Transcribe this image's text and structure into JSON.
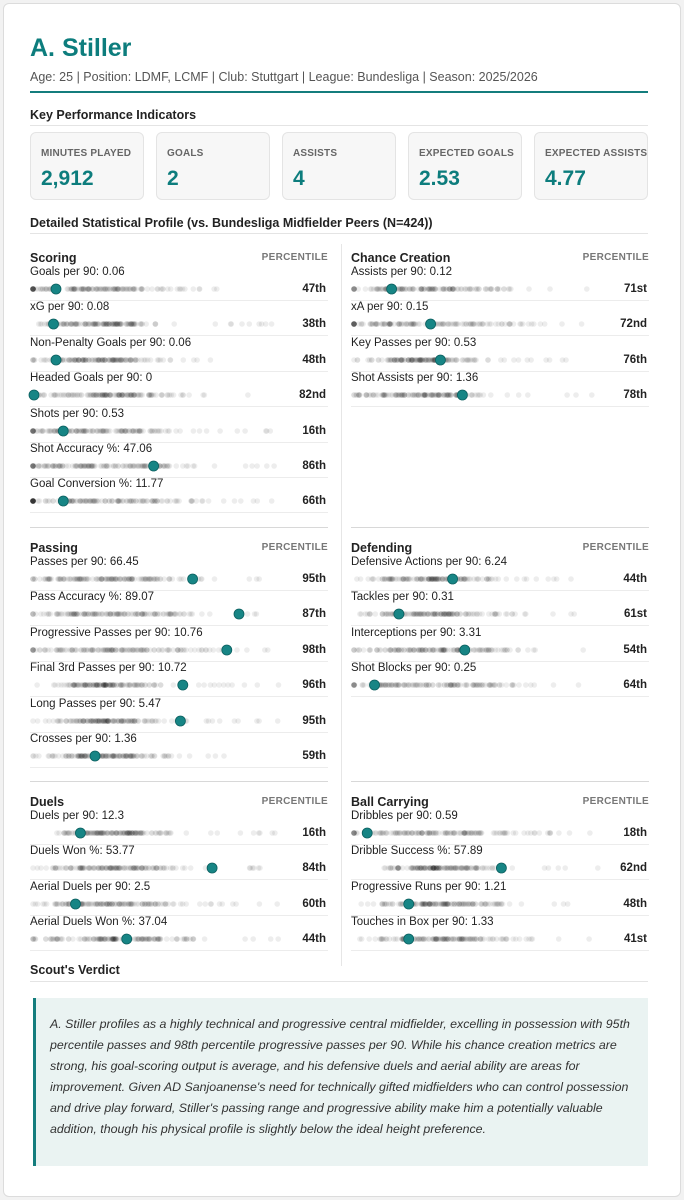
{
  "player": {
    "name": "A. Stiller",
    "meta": "Age: 25 | Position: LDMF, LCMF | Club: Stuttgart | League: Bundesliga | Season: 2025/2026"
  },
  "sections": {
    "kpi_title": "Key Performance Indicators",
    "profile_title": "Detailed Statistical Profile (vs. Bundesliga Midfielder Peers (N=424))",
    "verdict_title": "Scout's Verdict"
  },
  "kpis": [
    {
      "label": "MINUTES PLAYED",
      "value": "2,912"
    },
    {
      "label": "GOALS",
      "value": "2"
    },
    {
      "label": "ASSISTS",
      "value": "4"
    },
    {
      "label": "EXPECTED GOALS",
      "value": "2.53"
    },
    {
      "label": "EXPECTED ASSISTS",
      "value": "4.77"
    }
  ],
  "percentile_header": "PERCENTILE",
  "panels": [
    {
      "title": "Scoring",
      "metrics": [
        {
          "label": "Goals per 90: 0.06",
          "pct": "47th",
          "marker": 0.09
        },
        {
          "label": "xG per 90: 0.08",
          "pct": "38th",
          "marker": 0.08
        },
        {
          "label": "Non-Penalty Goals per 90: 0.06",
          "pct": "48th",
          "marker": 0.09
        },
        {
          "label": "Headed Goals per 90: 0",
          "pct": "82nd",
          "marker": 0.0
        },
        {
          "label": "Shots per 90: 0.53",
          "pct": "16th",
          "marker": 0.12
        },
        {
          "label": "Shot Accuracy %: 47.06",
          "pct": "86th",
          "marker": 0.49
        },
        {
          "label": "Goal Conversion %: 11.77",
          "pct": "66th",
          "marker": 0.12
        }
      ]
    },
    {
      "title": "Chance Creation",
      "metrics": [
        {
          "label": "Assists per 90: 0.12",
          "pct": "71st",
          "marker": 0.15
        },
        {
          "label": "xA per 90: 0.15",
          "pct": "72nd",
          "marker": 0.31
        },
        {
          "label": "Key Passes per 90: 0.53",
          "pct": "76th",
          "marker": 0.35
        },
        {
          "label": "Shot Assists per 90: 1.36",
          "pct": "78th",
          "marker": 0.44
        }
      ]
    },
    {
      "title": "Passing",
      "metrics": [
        {
          "label": "Passes per 90: 66.45",
          "pct": "95th",
          "marker": 0.65
        },
        {
          "label": "Pass Accuracy %: 89.07",
          "pct": "87th",
          "marker": 0.84
        },
        {
          "label": "Progressive Passes per 90: 10.76",
          "pct": "98th",
          "marker": 0.79
        },
        {
          "label": "Final 3rd Passes per 90: 10.72",
          "pct": "96th",
          "marker": 0.61
        },
        {
          "label": "Long Passes per 90: 5.47",
          "pct": "95th",
          "marker": 0.6
        },
        {
          "label": "Crosses per 90: 1.36",
          "pct": "59th",
          "marker": 0.25
        }
      ]
    },
    {
      "title": "Defending",
      "metrics": [
        {
          "label": "Defensive Actions per 90: 6.24",
          "pct": "44th",
          "marker": 0.4
        },
        {
          "label": "Tackles per 90: 0.31",
          "pct": "61st",
          "marker": 0.18
        },
        {
          "label": "Interceptions per 90: 3.31",
          "pct": "54th",
          "marker": 0.45
        },
        {
          "label": "Shot Blocks per 90: 0.25",
          "pct": "64th",
          "marker": 0.08
        }
      ]
    },
    {
      "title": "Duels",
      "metrics": [
        {
          "label": "Duels per 90: 12.3",
          "pct": "16th",
          "marker": 0.19
        },
        {
          "label": "Duels Won %: 53.77",
          "pct": "84th",
          "marker": 0.73
        },
        {
          "label": "Aerial Duels per 90: 2.5",
          "pct": "60th",
          "marker": 0.17
        },
        {
          "label": "Aerial Duels Won %: 37.04",
          "pct": "44th",
          "marker": 0.38
        }
      ]
    },
    {
      "title": "Ball Carrying",
      "metrics": [
        {
          "label": "Dribbles per 90: 0.59",
          "pct": "18th",
          "marker": 0.05
        },
        {
          "label": "Dribble Success %: 57.89",
          "pct": "62nd",
          "marker": 0.6
        },
        {
          "label": "Progressive Runs per 90: 1.21",
          "pct": "48th",
          "marker": 0.22
        },
        {
          "label": "Touches in Box per 90: 1.33",
          "pct": "41st",
          "marker": 0.22
        }
      ]
    }
  ],
  "verdict": "A. Stiller profiles as a highly technical and progressive central midfielder, excelling in possession with 95th percentile passes and 98th percentile progressive passes per 90. While his chance creation metrics are strong, his goal-scoring output is average, and his defensive duels and aerial ability are areas for improvement. Given AD Sanjoanense's need for technically gifted midfielders who can control possession and drive play forward, Stiller's passing range and progressive ability make him a potentially valuable addition, though his physical profile is slightly below the ideal height preference.",
  "colors": {
    "accent": "#0d7d7d",
    "marker": "#178585"
  }
}
